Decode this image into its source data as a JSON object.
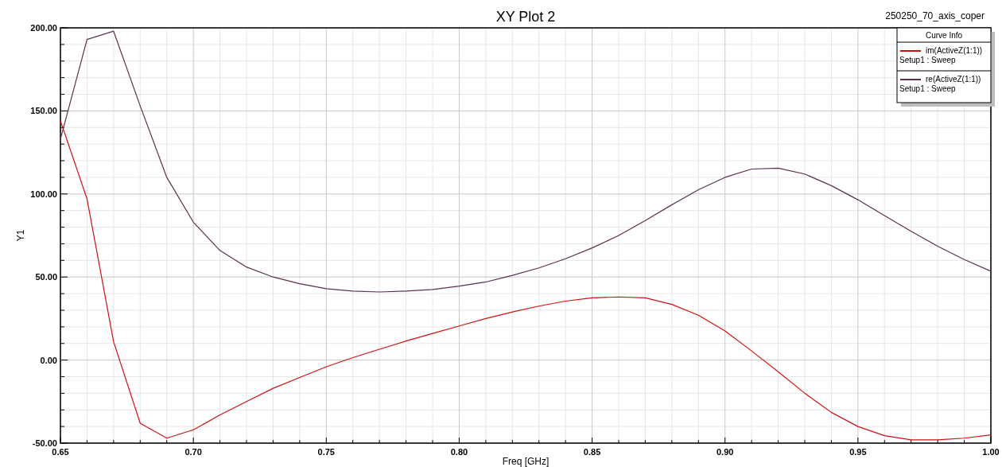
{
  "chart_data": {
    "type": "line",
    "title": "XY Plot 2",
    "xlabel": "Freq [GHz]",
    "ylabel": "Y1",
    "legend_title": "Curve Info",
    "annotations": [
      "250250_70_axis_coper"
    ],
    "x": [
      0.65,
      0.66,
      0.67,
      0.68,
      0.69,
      0.7,
      0.71,
      0.72,
      0.73,
      0.74,
      0.75,
      0.76,
      0.77,
      0.78,
      0.79,
      0.8,
      0.81,
      0.82,
      0.83,
      0.84,
      0.85,
      0.86,
      0.87,
      0.88,
      0.89,
      0.9,
      0.91,
      0.92,
      0.93,
      0.94,
      0.95,
      0.96,
      0.97,
      0.98,
      0.99,
      1.0
    ],
    "series": [
      {
        "name": "im(ActiveZ(1:1))\nSetup1 : Sweep",
        "color": "#d01010",
        "values": [
          144,
          97,
          11,
          -38,
          -47,
          -42,
          -33,
          -25,
          -17,
          -10.5,
          -4,
          1.5,
          6.5,
          11.5,
          16,
          20.5,
          25,
          29,
          32.5,
          35.5,
          37.5,
          38,
          37.5,
          33.5,
          27,
          17.5,
          5.5,
          -7,
          -20,
          -31.5,
          -40,
          -45.5,
          -48,
          -48,
          -47,
          -45
        ]
      },
      {
        "name": "re(ActiveZ(1:1))\nSetup1 : Sweep",
        "color": "#5e2f52",
        "values": [
          133,
          193,
          198,
          153,
          110,
          83,
          66,
          56,
          50,
          46,
          43,
          41.5,
          41,
          41.5,
          42.5,
          44.5,
          47,
          51,
          55.5,
          61,
          67.5,
          75,
          84,
          93.5,
          102.5,
          110,
          115,
          115.5,
          112,
          105,
          96.5,
          87,
          77.5,
          68.5,
          60.5,
          53.5
        ]
      }
    ],
    "xlim": [
      0.65,
      1.0
    ],
    "xticks": [
      0.65,
      {
        "value": 0.7,
        "label": "0.70"
      },
      0.75,
      {
        "value": 0.8,
        "label": "0.80"
      },
      0.85,
      {
        "value": 0.9,
        "label": "0.90"
      },
      0.95,
      {
        "value": 1.0,
        "label": "1.00"
      }
    ],
    "ylim": [
      -50,
      200
    ],
    "yticks": [
      {
        "value": -50,
        "label": "-50.00"
      },
      {
        "value": 0,
        "label": "0.00"
      },
      {
        "value": 50,
        "label": "50.00"
      },
      {
        "value": 100,
        "label": "100.00"
      },
      {
        "value": 150,
        "label": "150.00"
      },
      {
        "value": 200,
        "label": "200.00"
      }
    ],
    "grid": true,
    "legend": "top right",
    "marker": "none",
    "line_style": "solid"
  }
}
